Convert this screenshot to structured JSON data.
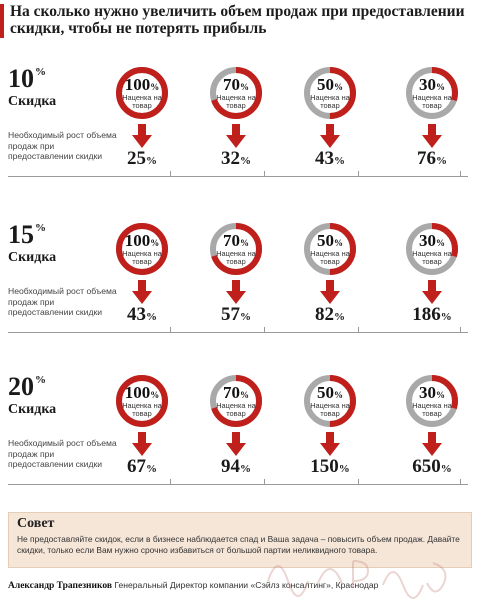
{
  "title": "На сколько нужно увеличить объем продаж при предоставлении скидки, чтобы не потерять прибыль",
  "markup_label": "Наценка на товар",
  "growth_label": "Необходимый рост объема продаж при предоставлении скидки",
  "discount_label": "Скидка",
  "percent_sign": "%",
  "markups": [
    "100",
    "70",
    "50",
    "30"
  ],
  "markup_fill_fractions": [
    1.0,
    0.7,
    0.5,
    0.3
  ],
  "colors": {
    "accent": "#c0201c",
    "ring_bg": "#a9a9a9",
    "advice_bg": "#f6e6d8"
  },
  "sections": [
    {
      "discount": "10",
      "results": [
        "25",
        "32",
        "43",
        "76"
      ]
    },
    {
      "discount": "15",
      "results": [
        "43",
        "57",
        "82",
        "186"
      ]
    },
    {
      "discount": "20",
      "results": [
        "67",
        "94",
        "150",
        "650"
      ]
    }
  ],
  "advice": {
    "title": "Совет",
    "text": "Не предоставляйте скидок, если в бизнесе наблюдается спад и Ваша задача – повысить объем продаж. Давайте скидки, только если Вам нужно срочно избавиться от большой партии неликвидного товара."
  },
  "footer": {
    "author": "Александр Трапезников",
    "role": "Генеральный Директор компании «Сэйлз консалтинг», Краснодар"
  }
}
